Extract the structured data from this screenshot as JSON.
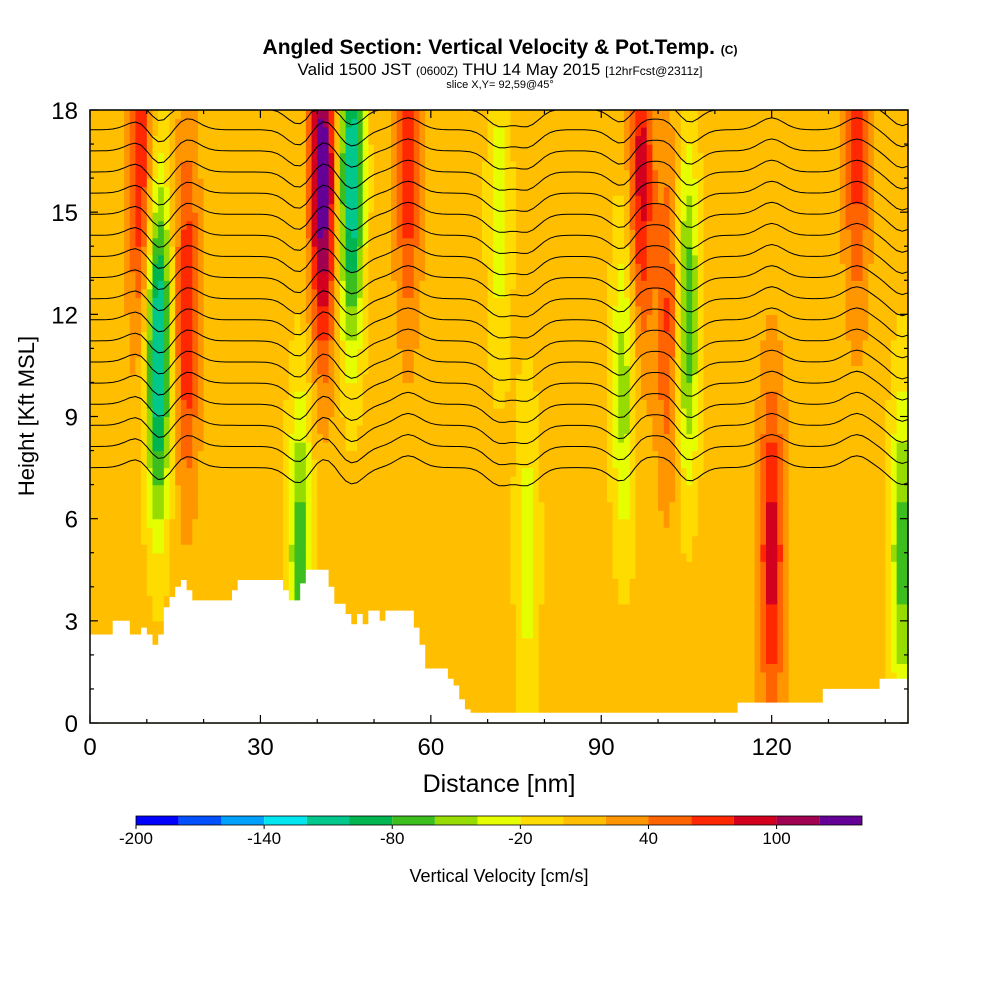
{
  "title": {
    "main": "Angled Section: Vertical Velocity & Pot.Temp.",
    "unit": "(C)",
    "valid_prefix": "Valid 1500 JST",
    "utc": "(0600Z)",
    "valid_date": "THU 14 May 2015",
    "forecast": "[12hrFcst@2311z]",
    "slice": "slice X,Y= 92,59@45°"
  },
  "chart_data": {
    "type": "heatmap",
    "xlabel": "Distance [nm]",
    "ylabel": "Height [Kft MSL]",
    "xlim": [
      0,
      144
    ],
    "ylim": [
      0,
      18
    ],
    "x_ticks": [
      0,
      30,
      60,
      90,
      120
    ],
    "y_ticks": [
      0,
      3,
      6,
      9,
      12,
      15,
      18
    ],
    "colorbar": {
      "label": "Vertical Velocity [cm/s]",
      "ticks": [
        -200,
        -140,
        -80,
        -20,
        40,
        100
      ],
      "levels": [
        -200,
        -180,
        -160,
        -140,
        -120,
        -100,
        -80,
        -60,
        -40,
        -20,
        0,
        20,
        40,
        60,
        80,
        100,
        120,
        140
      ],
      "colors": [
        "#0000ff",
        "#0050ff",
        "#00a0ff",
        "#00e6f0",
        "#00c88c",
        "#00b450",
        "#3cbe1e",
        "#96dc00",
        "#e6ff00",
        "#ffdc00",
        "#ffbe00",
        "#ff9600",
        "#ff6400",
        "#ff2800",
        "#d2001e",
        "#a00050",
        "#640096"
      ]
    },
    "background_velocity_cm_s": 10,
    "updrafts": [
      {
        "x": 9,
        "z": 16,
        "w": 70
      },
      {
        "x": 17,
        "z": 12,
        "w": 70
      },
      {
        "x": 41,
        "z": 16,
        "w": 130
      },
      {
        "x": 56,
        "z": 17,
        "w": 70
      },
      {
        "x": 97,
        "z": 16,
        "w": 80
      },
      {
        "x": 102,
        "z": 12,
        "w": 60
      },
      {
        "x": 120,
        "z": 5,
        "w": 80
      },
      {
        "x": 135,
        "z": 17,
        "w": 60
      }
    ],
    "downdrafts": [
      {
        "x": 12,
        "z": 11,
        "w": -140
      },
      {
        "x": 46,
        "z": 16,
        "w": -130
      },
      {
        "x": 37,
        "z": 5,
        "w": -80
      },
      {
        "x": 94,
        "z": 10,
        "w": -60
      },
      {
        "x": 105,
        "z": 12,
        "w": -90
      },
      {
        "x": 77,
        "z": 5,
        "w": -40
      },
      {
        "x": 72,
        "z": 15,
        "w": -40
      },
      {
        "x": 143,
        "z": 5,
        "w": -80
      }
    ],
    "terrain_heights_kft": [
      [
        0,
        2.6
      ],
      [
        3,
        2.6
      ],
      [
        4,
        3.0
      ],
      [
        6,
        3.0
      ],
      [
        7,
        2.6
      ],
      [
        8,
        2.6
      ],
      [
        9,
        2.8
      ],
      [
        10,
        2.6
      ],
      [
        11,
        2.3
      ],
      [
        12,
        2.6
      ],
      [
        13,
        3.4
      ],
      [
        14,
        3.7
      ],
      [
        15,
        4.0
      ],
      [
        16,
        4.2
      ],
      [
        17,
        3.9
      ],
      [
        18,
        3.6
      ],
      [
        24,
        3.6
      ],
      [
        25,
        3.9
      ],
      [
        26,
        4.2
      ],
      [
        33,
        4.2
      ],
      [
        34,
        3.9
      ],
      [
        35,
        3.6
      ],
      [
        37,
        4.1
      ],
      [
        38,
        4.5
      ],
      [
        41,
        4.5
      ],
      [
        42,
        4.0
      ],
      [
        43,
        3.5
      ],
      [
        45,
        3.2
      ],
      [
        46,
        2.9
      ],
      [
        47,
        3.2
      ],
      [
        48,
        2.9
      ],
      [
        49,
        3.3
      ],
      [
        50,
        3.3
      ],
      [
        51,
        3.0
      ],
      [
        52,
        3.3
      ],
      [
        53,
        3.3
      ],
      [
        56,
        3.3
      ],
      [
        57,
        2.8
      ],
      [
        58,
        2.3
      ],
      [
        59,
        1.6
      ],
      [
        62,
        1.6
      ],
      [
        63,
        1.3
      ],
      [
        64,
        1.1
      ],
      [
        65,
        0.7
      ],
      [
        66,
        0.4
      ],
      [
        67,
        0.3
      ],
      [
        68,
        0.3
      ],
      [
        113,
        0.3
      ],
      [
        114,
        0.6
      ],
      [
        128,
        0.6
      ],
      [
        129,
        1.0
      ],
      [
        138,
        1.0
      ],
      [
        139,
        1.3
      ],
      [
        144,
        1.3
      ]
    ],
    "theta_levels_c": [
      28,
      30,
      32,
      34,
      36,
      38,
      40,
      42,
      44,
      46,
      48,
      50,
      52,
      54,
      56,
      58,
      60,
      62
    ]
  }
}
